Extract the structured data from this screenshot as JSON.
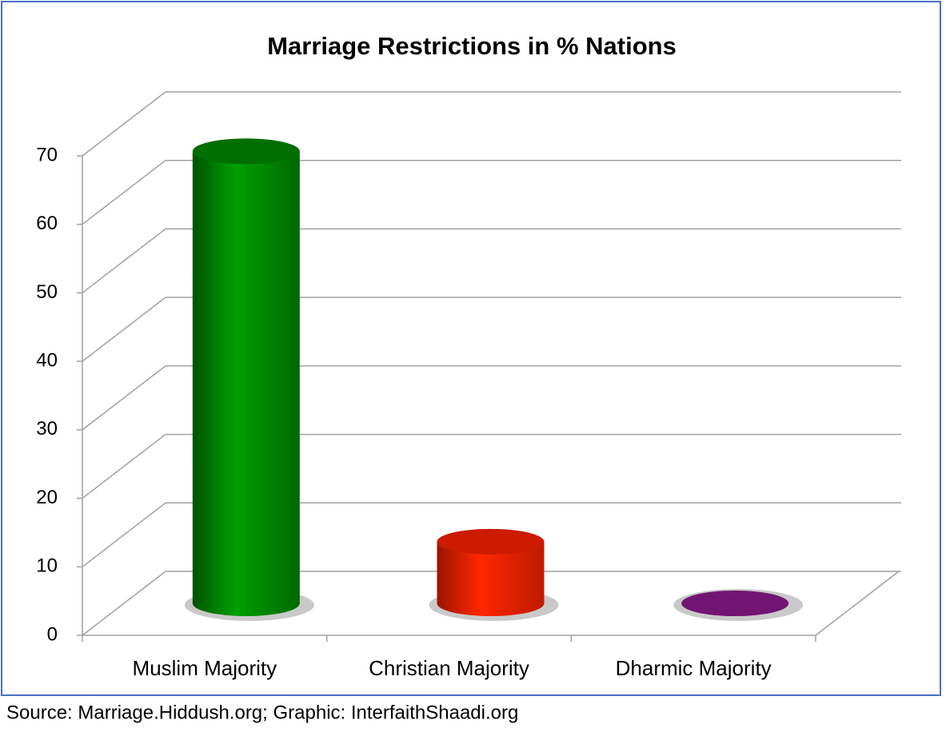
{
  "chart_data": {
    "type": "bar3d",
    "title": "Marriage Restrictions in % Nations",
    "categories": [
      "Muslim Majority",
      "Christian Majority",
      "Dharmic Majority"
    ],
    "values": [
      66,
      9,
      0
    ],
    "colors": [
      "#008a00",
      "#ff2200",
      "#8e1a8e"
    ],
    "ylim": [
      0,
      70
    ],
    "yticks": [
      0,
      10,
      20,
      30,
      40,
      50,
      60,
      70
    ],
    "grid": true,
    "source": "Source: Marriage.Hiddush.org; Graphic: InterfaithShaadi.org"
  }
}
